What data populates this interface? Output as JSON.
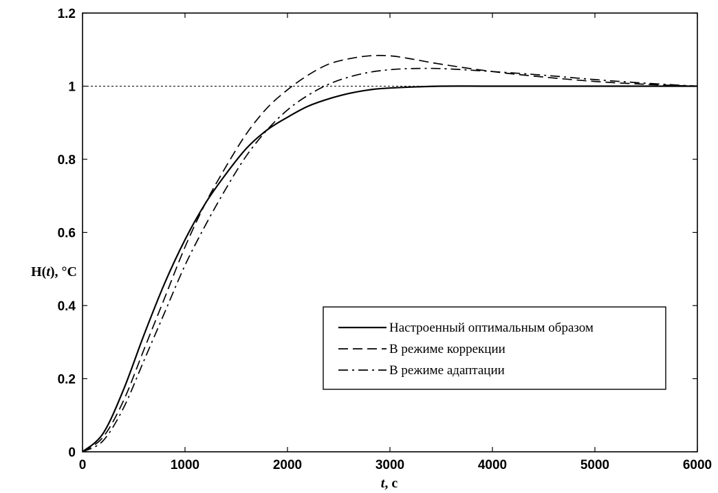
{
  "chart_data": {
    "type": "line",
    "title": "",
    "xlabel": "t, с",
    "xlabel_parts": {
      "var": "t",
      "unit": ", с"
    },
    "ylabel": "H(t), °C",
    "ylabel_parts": {
      "pre": "H(",
      "var": "t",
      "post": "), °C"
    },
    "xlim": [
      0,
      6000
    ],
    "ylim": [
      0,
      1.2
    ],
    "xticks": [
      0,
      1000,
      2000,
      3000,
      4000,
      5000,
      6000
    ],
    "xtick_labels": [
      "0",
      "1000",
      "2000",
      "3000",
      "4000",
      "5000",
      "6000"
    ],
    "yticks": [
      0,
      0.2,
      0.4,
      0.6,
      0.8,
      1.0,
      1.2
    ],
    "ytick_labels": [
      "0",
      "0.2",
      "0.4",
      "0.6",
      "0.8",
      "1",
      "1.2"
    ],
    "grid": false,
    "legend_position": "bottom-right",
    "reference_line": {
      "y": 1.0,
      "style": "dotted"
    },
    "series": [
      {
        "name": "Настроенный оптимальным образом",
        "style": "solid",
        "x": [
          0,
          200,
          400,
          600,
          800,
          1000,
          1200,
          1400,
          1600,
          1800,
          2000,
          2200,
          2400,
          2600,
          2800,
          3000,
          3500,
          4000,
          5000,
          6000
        ],
        "y": [
          0,
          0.05,
          0.17,
          0.32,
          0.46,
          0.58,
          0.68,
          0.76,
          0.83,
          0.88,
          0.915,
          0.945,
          0.965,
          0.98,
          0.99,
          0.995,
          1.0,
          1.0,
          1.0,
          1.0
        ]
      },
      {
        "name": "В режиме коррекции",
        "style": "dashed",
        "x": [
          0,
          200,
          400,
          600,
          800,
          1000,
          1200,
          1400,
          1600,
          1800,
          2000,
          2200,
          2400,
          2600,
          2800,
          3000,
          3200,
          3500,
          4000,
          4500,
          5000,
          5500,
          6000
        ],
        "y": [
          0,
          0.04,
          0.14,
          0.28,
          0.42,
          0.56,
          0.68,
          0.78,
          0.87,
          0.94,
          0.99,
          1.03,
          1.06,
          1.075,
          1.083,
          1.083,
          1.075,
          1.06,
          1.04,
          1.025,
          1.013,
          1.005,
          1.0
        ]
      },
      {
        "name": "В режиме адаптации",
        "style": "dashdot",
        "x": [
          0,
          200,
          400,
          600,
          800,
          1000,
          1200,
          1400,
          1600,
          1800,
          2000,
          2200,
          2400,
          2600,
          2800,
          3000,
          3200,
          3500,
          4000,
          4500,
          5000,
          5500,
          6000
        ],
        "y": [
          0,
          0.03,
          0.12,
          0.25,
          0.38,
          0.51,
          0.62,
          0.72,
          0.81,
          0.88,
          0.935,
          0.975,
          1.005,
          1.025,
          1.038,
          1.045,
          1.048,
          1.048,
          1.04,
          1.03,
          1.018,
          1.008,
          1.0
        ]
      }
    ]
  }
}
